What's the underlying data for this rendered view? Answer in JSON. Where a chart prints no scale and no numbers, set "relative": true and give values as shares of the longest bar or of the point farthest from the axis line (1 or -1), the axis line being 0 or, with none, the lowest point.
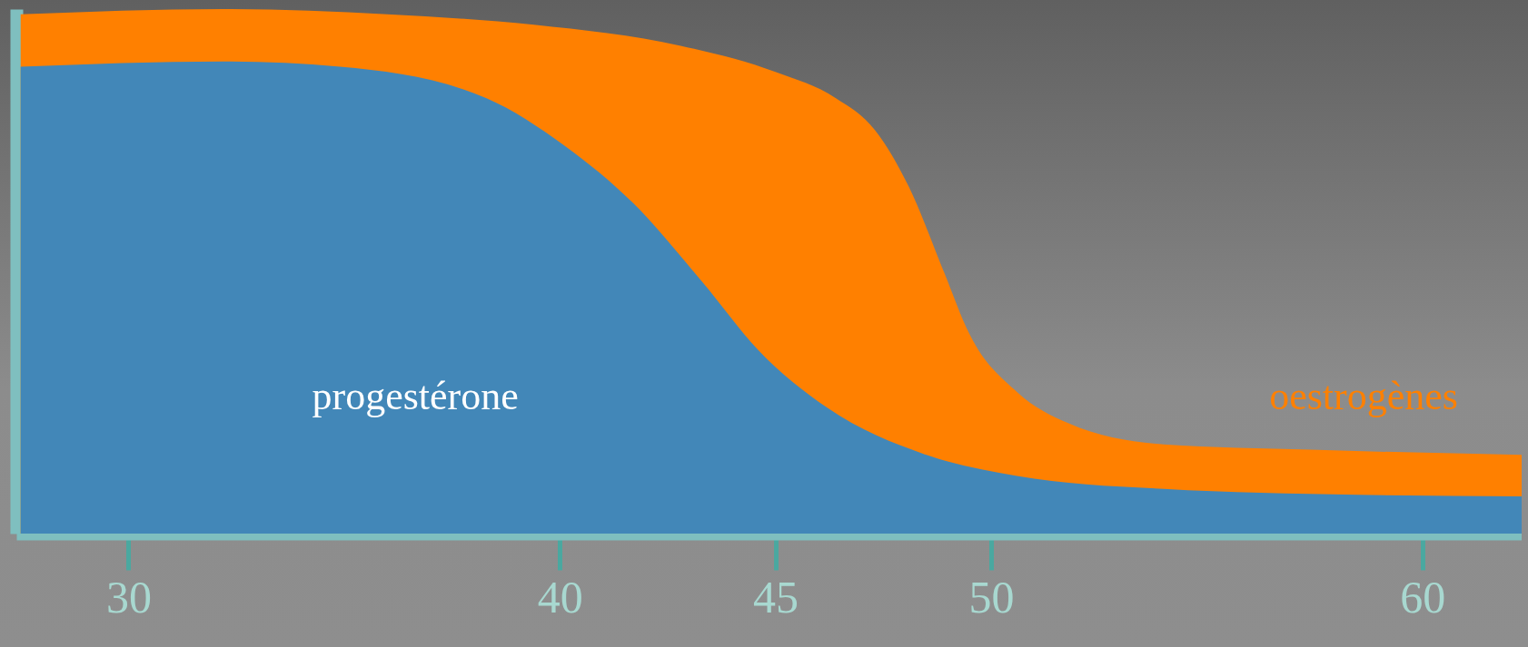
{
  "chart_data": {
    "type": "area",
    "relative": true,
    "xlim": [
      27.4,
      62.3
    ],
    "xticks": [
      30,
      40,
      45,
      50,
      60
    ],
    "grid": false,
    "series": [
      {
        "name": "oestrogènes",
        "color": "#ff8000",
        "x": [
          27.5,
          32.2,
          36.0,
          39.4,
          42.8,
          45.0,
          46.4,
          47.3,
          48.1,
          48.9,
          49.5,
          50.6,
          51.8,
          54.0,
          57.4,
          62.3
        ],
        "values": [
          0.99,
          1.0,
          0.99,
          0.97,
          0.93,
          0.88,
          0.83,
          0.77,
          0.66,
          0.5,
          0.38,
          0.27,
          0.21,
          0.17,
          0.16,
          0.15
        ]
      },
      {
        "name": "progestérone",
        "color": "#4287b8",
        "x": [
          27.5,
          32.2,
          34.9,
          38.3,
          40.1,
          41.7,
          43.3,
          44.6,
          46.2,
          48.5,
          50.6,
          54.0,
          58.5,
          62.3
        ],
        "values": [
          0.89,
          0.9,
          0.89,
          0.83,
          0.74,
          0.63,
          0.48,
          0.35,
          0.24,
          0.15,
          0.11,
          0.085,
          0.074,
          0.071
        ]
      }
    ]
  }
}
